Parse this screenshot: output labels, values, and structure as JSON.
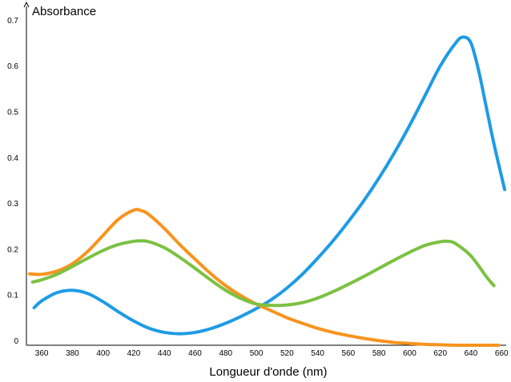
{
  "chart_data": {
    "type": "line",
    "xlabel": "Longueur d'onde (nm)",
    "ylabel": "Absorbance",
    "xlim": [
      350,
      663
    ],
    "ylim": [
      0,
      0.74
    ],
    "x_ticks": [
      360,
      380,
      400,
      420,
      440,
      460,
      480,
      500,
      520,
      540,
      560,
      580,
      600,
      620,
      640,
      660
    ],
    "y_ticks": [
      0,
      0.1,
      0.2,
      0.3,
      0.4,
      0.5,
      0.6,
      0.7
    ],
    "y_tick_labels": [
      "0",
      "0.1",
      "0.2",
      "0.3",
      "0.4",
      "0.5",
      "0.6",
      "0.7"
    ],
    "grid": false,
    "legend": "none",
    "series": [
      {
        "color": "#1e9be6",
        "x": [
          355,
          360,
          370,
          380,
          390,
          400,
          410,
          420,
          430,
          440,
          450,
          460,
          470,
          480,
          490,
          500,
          510,
          520,
          530,
          540,
          550,
          560,
          570,
          580,
          590,
          600,
          610,
          620,
          630,
          635,
          640,
          645,
          650,
          655,
          662
        ],
        "y": [
          0.082,
          0.097,
          0.115,
          0.12,
          0.113,
          0.095,
          0.073,
          0.053,
          0.037,
          0.028,
          0.025,
          0.028,
          0.036,
          0.048,
          0.063,
          0.08,
          0.1,
          0.125,
          0.155,
          0.19,
          0.228,
          0.27,
          0.315,
          0.365,
          0.42,
          0.48,
          0.545,
          0.61,
          0.66,
          0.673,
          0.66,
          0.6,
          0.52,
          0.44,
          0.34
        ]
      },
      {
        "color": "#f7941d",
        "x": [
          352,
          360,
          370,
          380,
          390,
          400,
          410,
          420,
          425,
          430,
          440,
          450,
          460,
          470,
          480,
          490,
          500,
          510,
          520,
          530,
          540,
          550,
          560,
          570,
          580,
          590,
          600,
          610,
          620,
          630,
          640,
          650,
          658
        ],
        "y": [
          0.156,
          0.155,
          0.162,
          0.178,
          0.205,
          0.24,
          0.275,
          0.295,
          0.294,
          0.285,
          0.255,
          0.22,
          0.188,
          0.157,
          0.13,
          0.108,
          0.09,
          0.075,
          0.06,
          0.048,
          0.037,
          0.028,
          0.021,
          0.015,
          0.01,
          0.006,
          0.004,
          0.002,
          0.001,
          0.0,
          0.0,
          0.0,
          0.0
        ]
      },
      {
        "color": "#7cc142",
        "x": [
          354,
          360,
          370,
          380,
          390,
          400,
          410,
          420,
          425,
          430,
          440,
          450,
          460,
          470,
          480,
          490,
          500,
          510,
          520,
          530,
          540,
          550,
          560,
          570,
          580,
          590,
          600,
          610,
          620,
          625,
          630,
          640,
          650,
          655
        ],
        "y": [
          0.138,
          0.143,
          0.155,
          0.172,
          0.19,
          0.207,
          0.22,
          0.227,
          0.228,
          0.226,
          0.213,
          0.192,
          0.168,
          0.143,
          0.12,
          0.102,
          0.09,
          0.087,
          0.088,
          0.093,
          0.103,
          0.117,
          0.133,
          0.15,
          0.168,
          0.186,
          0.203,
          0.218,
          0.226,
          0.227,
          0.222,
          0.195,
          0.15,
          0.13
        ]
      }
    ]
  }
}
